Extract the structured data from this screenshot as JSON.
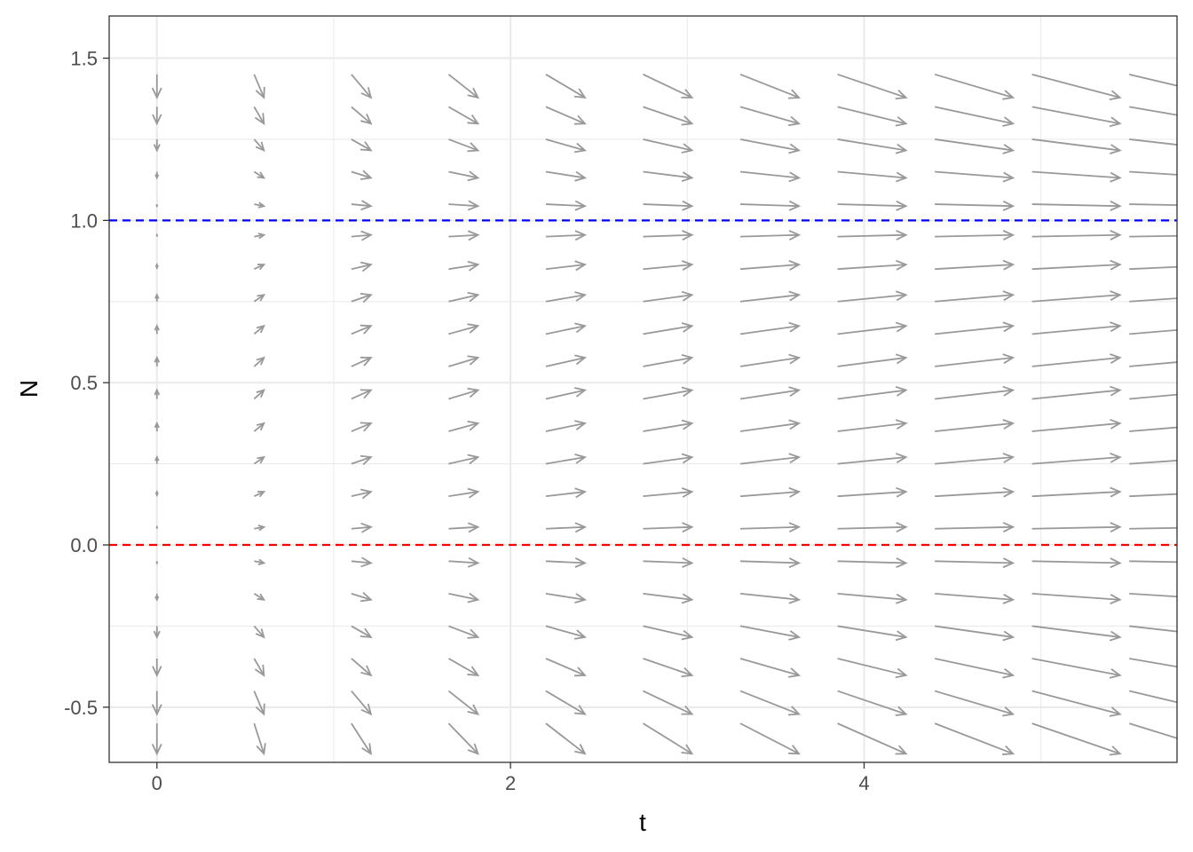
{
  "chart_data": {
    "type": "vector_field",
    "title": "",
    "xlabel": "t",
    "ylabel": "N",
    "xlim": [
      -0.27,
      5.77
    ],
    "ylim": [
      -0.67,
      1.63
    ],
    "x_ticks": [
      0,
      2,
      4
    ],
    "x_tick_labels": [
      "0",
      "2",
      "4"
    ],
    "y_ticks": [
      -0.5,
      0.0,
      0.5,
      1.0,
      1.5
    ],
    "y_tick_labels": [
      "-0.5",
      "0.0",
      "0.5",
      "1.0",
      "1.5"
    ],
    "grid": true,
    "field": {
      "equation_shape": "dN/dt = N(1 - N)",
      "t_values": [
        0,
        0.55,
        1.1,
        1.65,
        2.2,
        2.75,
        3.3,
        3.85,
        4.4,
        4.95,
        5.5
      ],
      "n_values": [
        -0.55,
        -0.45,
        -0.35,
        -0.25,
        -0.15,
        -0.05,
        0.05,
        0.15,
        0.25,
        0.35,
        0.45,
        0.55,
        0.65,
        0.75,
        0.85,
        0.95,
        1.05,
        1.15,
        1.25,
        1.35,
        1.45
      ],
      "arrow_color": "#999999"
    },
    "reference_lines": [
      {
        "y": 1.0,
        "color": "#0000ff",
        "style": "dashed"
      },
      {
        "y": 0.0,
        "color": "#ff0000",
        "style": "dashed"
      }
    ]
  }
}
